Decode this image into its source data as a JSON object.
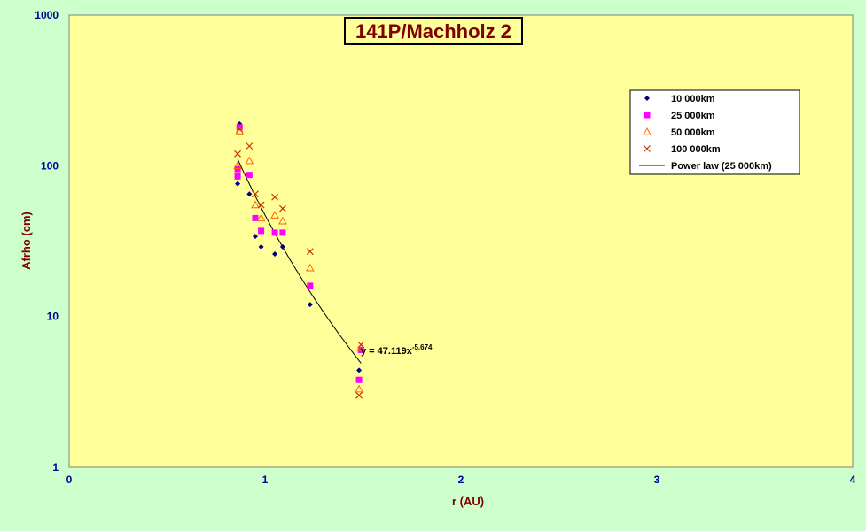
{
  "chart_data": {
    "type": "scatter",
    "title": "141P/Machholz 2",
    "xlabel": "r (AU)",
    "ylabel": "Afrho (cm)",
    "xlim": [
      0,
      4
    ],
    "ylim": [
      1,
      1000
    ],
    "y_scale": "log",
    "x_ticks": [
      "0",
      "1",
      "2",
      "3",
      "4"
    ],
    "y_ticks": [
      "1",
      "10",
      "100",
      "1000"
    ],
    "grid": false,
    "legend_position": "top-right",
    "colors": {
      "outer_background": "#ccffcc",
      "plot_background": "#ffff99",
      "tick_text": "#000099",
      "title_text": "#800000"
    },
    "series": [
      {
        "name": "10 000km",
        "marker": "diamond",
        "color": "#000080",
        "points": [
          [
            0.87,
            190
          ],
          [
            0.86,
            76
          ],
          [
            0.92,
            65
          ],
          [
            0.95,
            34
          ],
          [
            0.98,
            29
          ],
          [
            1.05,
            26
          ],
          [
            1.09,
            29
          ],
          [
            1.23,
            12
          ],
          [
            1.48,
            4.4
          ]
        ]
      },
      {
        "name": "25 000km",
        "marker": "square",
        "color": "#ff00ff",
        "points": [
          [
            0.87,
            180
          ],
          [
            0.86,
            95
          ],
          [
            0.86,
            85
          ],
          [
            0.92,
            87
          ],
          [
            0.95,
            45
          ],
          [
            0.98,
            37
          ],
          [
            1.05,
            36
          ],
          [
            1.09,
            36
          ],
          [
            1.23,
            16
          ],
          [
            1.48,
            3.8
          ],
          [
            1.49,
            6.0
          ]
        ]
      },
      {
        "name": "50 000km",
        "marker": "triangle",
        "color": "#ff6600",
        "points": [
          [
            0.87,
            170
          ],
          [
            0.86,
            100
          ],
          [
            0.92,
            108
          ],
          [
            0.95,
            55
          ],
          [
            0.98,
            45
          ],
          [
            1.05,
            47
          ],
          [
            1.09,
            43
          ],
          [
            1.23,
            21
          ],
          [
            1.48,
            3.3
          ],
          [
            1.49,
            6.2
          ]
        ]
      },
      {
        "name": "100 000km",
        "marker": "x",
        "color": "#cc3300",
        "points": [
          [
            0.87,
            175
          ],
          [
            0.86,
            120
          ],
          [
            0.92,
            135
          ],
          [
            0.95,
            65
          ],
          [
            0.98,
            55
          ],
          [
            1.05,
            62
          ],
          [
            1.09,
            52
          ],
          [
            1.23,
            27
          ],
          [
            1.48,
            3.0
          ],
          [
            1.49,
            6.5
          ]
        ]
      }
    ],
    "trendline": {
      "name": "Power law (25 000km)",
      "coefficient": 47.119,
      "exponent": -5.674,
      "x_range": [
        0.86,
        1.49
      ],
      "color": "#000000"
    },
    "equation": {
      "prefix": "y = 47.119x",
      "exponent_text": "-5.674"
    }
  }
}
